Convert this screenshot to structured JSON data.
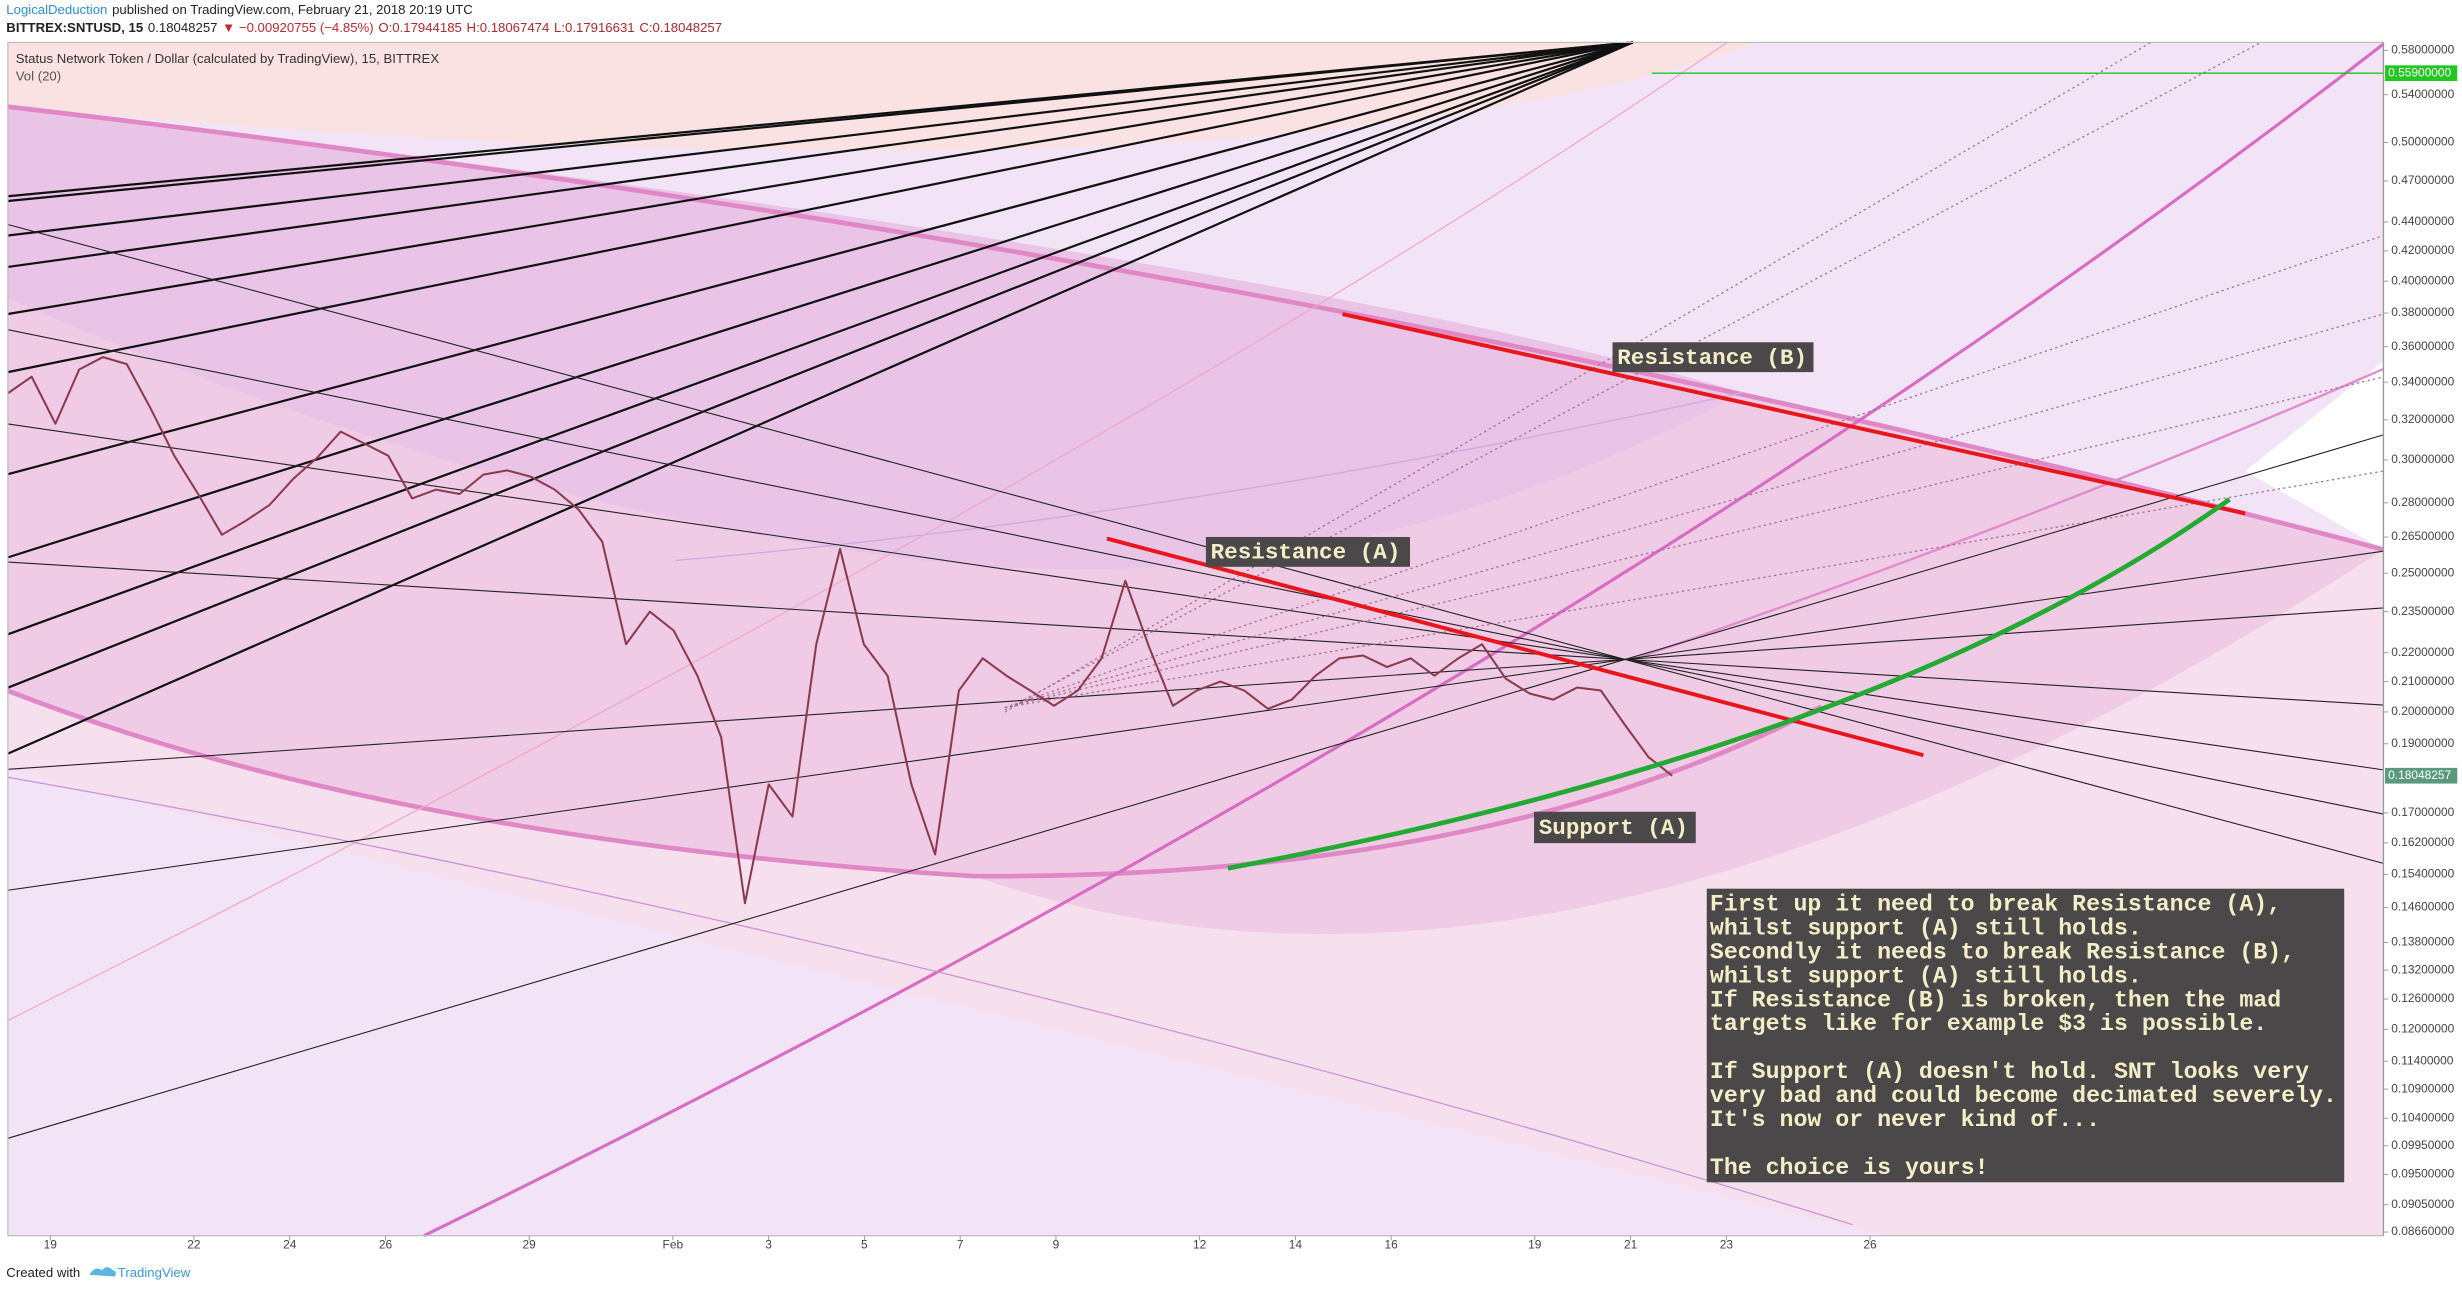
{
  "header": {
    "author": "LogicalDeduction",
    "published": "published on TradingView.com, February 21, 2018 20:19 UTC",
    "symbol": "BITTREX:SNTUSD, 15",
    "price": "0.18048257",
    "change": "▼ −0.00920755 (−4.85%)",
    "ohlc": [
      "O:0.17944185",
      "H:0.18067474",
      "L:0.17916631",
      "C:0.18048257"
    ]
  },
  "chart_data": {
    "type": "line",
    "symbol_description": "Status Network Token / Dollar (calculated by TradingView), 15, BITTREX",
    "volume_label": "Vol (20)",
    "color": "#8a3a4a",
    "values": [
      0.334,
      0.343,
      0.318,
      0.347,
      0.354,
      0.35,
      0.326,
      0.302,
      0.284,
      0.266,
      0.272,
      0.279,
      0.291,
      0.301,
      0.314,
      0.308,
      0.302,
      0.282,
      0.286,
      0.284,
      0.293,
      0.295,
      0.292,
      0.286,
      0.277,
      0.263,
      0.223,
      0.235,
      0.228,
      0.212,
      0.192,
      0.147,
      0.178,
      0.169,
      0.223,
      0.26,
      0.223,
      0.212,
      0.178,
      0.159,
      0.207,
      0.218,
      0.212,
      0.207,
      0.202,
      0.207,
      0.218,
      0.247,
      0.222,
      0.202,
      0.207,
      0.21,
      0.207,
      0.201,
      0.204,
      0.212,
      0.218,
      0.219,
      0.215,
      0.218,
      0.212,
      0.218,
      0.223,
      0.211,
      0.206,
      0.204,
      0.208,
      0.207,
      0.196,
      0.186,
      0.18048257
    ],
    "log_scale": true,
    "grid": false,
    "ylim": [
      0.0861,
      0.5874
    ],
    "yticks": [
      {
        "value": 0.58,
        "label": "0.58000000"
      },
      {
        "value": 0.54,
        "label": "0.54000000"
      },
      {
        "value": 0.5,
        "label": "0.50000000"
      },
      {
        "value": 0.47,
        "label": "0.47000000"
      },
      {
        "value": 0.44,
        "label": "0.44000000"
      },
      {
        "value": 0.42,
        "label": "0.42000000"
      },
      {
        "value": 0.4,
        "label": "0.40000000"
      },
      {
        "value": 0.38,
        "label": "0.38000000"
      },
      {
        "value": 0.36,
        "label": "0.36000000"
      },
      {
        "value": 0.34,
        "label": "0.34000000"
      },
      {
        "value": 0.32,
        "label": "0.32000000"
      },
      {
        "value": 0.3,
        "label": "0.30000000"
      },
      {
        "value": 0.28,
        "label": "0.28000000"
      },
      {
        "value": 0.265,
        "label": "0.26500000"
      },
      {
        "value": 0.25,
        "label": "0.25000000"
      },
      {
        "value": 0.235,
        "label": "0.23500000"
      },
      {
        "value": 0.22,
        "label": "0.22000000"
      },
      {
        "value": 0.21,
        "label": "0.21000000"
      },
      {
        "value": 0.2,
        "label": "0.20000000"
      },
      {
        "value": 0.19,
        "label": "0.19000000"
      },
      {
        "value": 0.17,
        "label": "0.17000000"
      },
      {
        "value": 0.162,
        "label": "0.16200000"
      },
      {
        "value": 0.154,
        "label": "0.15400000"
      },
      {
        "value": 0.146,
        "label": "0.14600000"
      },
      {
        "value": 0.138,
        "label": "0.13800000"
      },
      {
        "value": 0.132,
        "label": "0.13200000"
      },
      {
        "value": 0.126,
        "label": "0.12600000"
      },
      {
        "value": 0.12,
        "label": "0.12000000"
      },
      {
        "value": 0.114,
        "label": "0.11400000"
      },
      {
        "value": 0.109,
        "label": "0.10900000"
      },
      {
        "value": 0.104,
        "label": "0.10400000"
      },
      {
        "value": 0.0995,
        "label": "0.09950000"
      },
      {
        "value": 0.095,
        "label": "0.09500000"
      },
      {
        "value": 0.0905,
        "label": "0.09050000"
      },
      {
        "value": 0.0866,
        "label": "0.08660000"
      }
    ],
    "xticks": [
      19,
      22,
      24,
      26,
      29,
      {
        "value": 1,
        "label": "Feb"
      },
      3,
      5,
      7,
      9,
      12,
      14,
      16,
      19,
      21,
      23,
      26
    ],
    "last_price": {
      "value": 0.18048257,
      "label": "0.18048257",
      "color": "#5a9a7c"
    },
    "target_line": {
      "value": 0.559,
      "label": "0.55900000",
      "color": "#22c722"
    },
    "annotations": {
      "resistance_b": "Resistance (B)",
      "resistance_a": "Resistance (A)",
      "support_a": "Support (A)"
    },
    "note": [
      [
        "First up it need to break Resistance (A),",
        "whilst support (A) still holds.",
        "Secondly it needs to break Resistance (B),",
        "whilst support (A) still holds.",
        "If Resistance (B) is broken, then the mad",
        "targets like for example $3 is possible."
      ],
      [
        "If Support (A) doesn't hold. SNT looks very",
        "very bad and could become decimated severely.",
        "It's now or never kind of..."
      ],
      [
        "The choice is yours!"
      ]
    ]
  },
  "footer": {
    "created": "Created with",
    "brand": "TradingView"
  }
}
